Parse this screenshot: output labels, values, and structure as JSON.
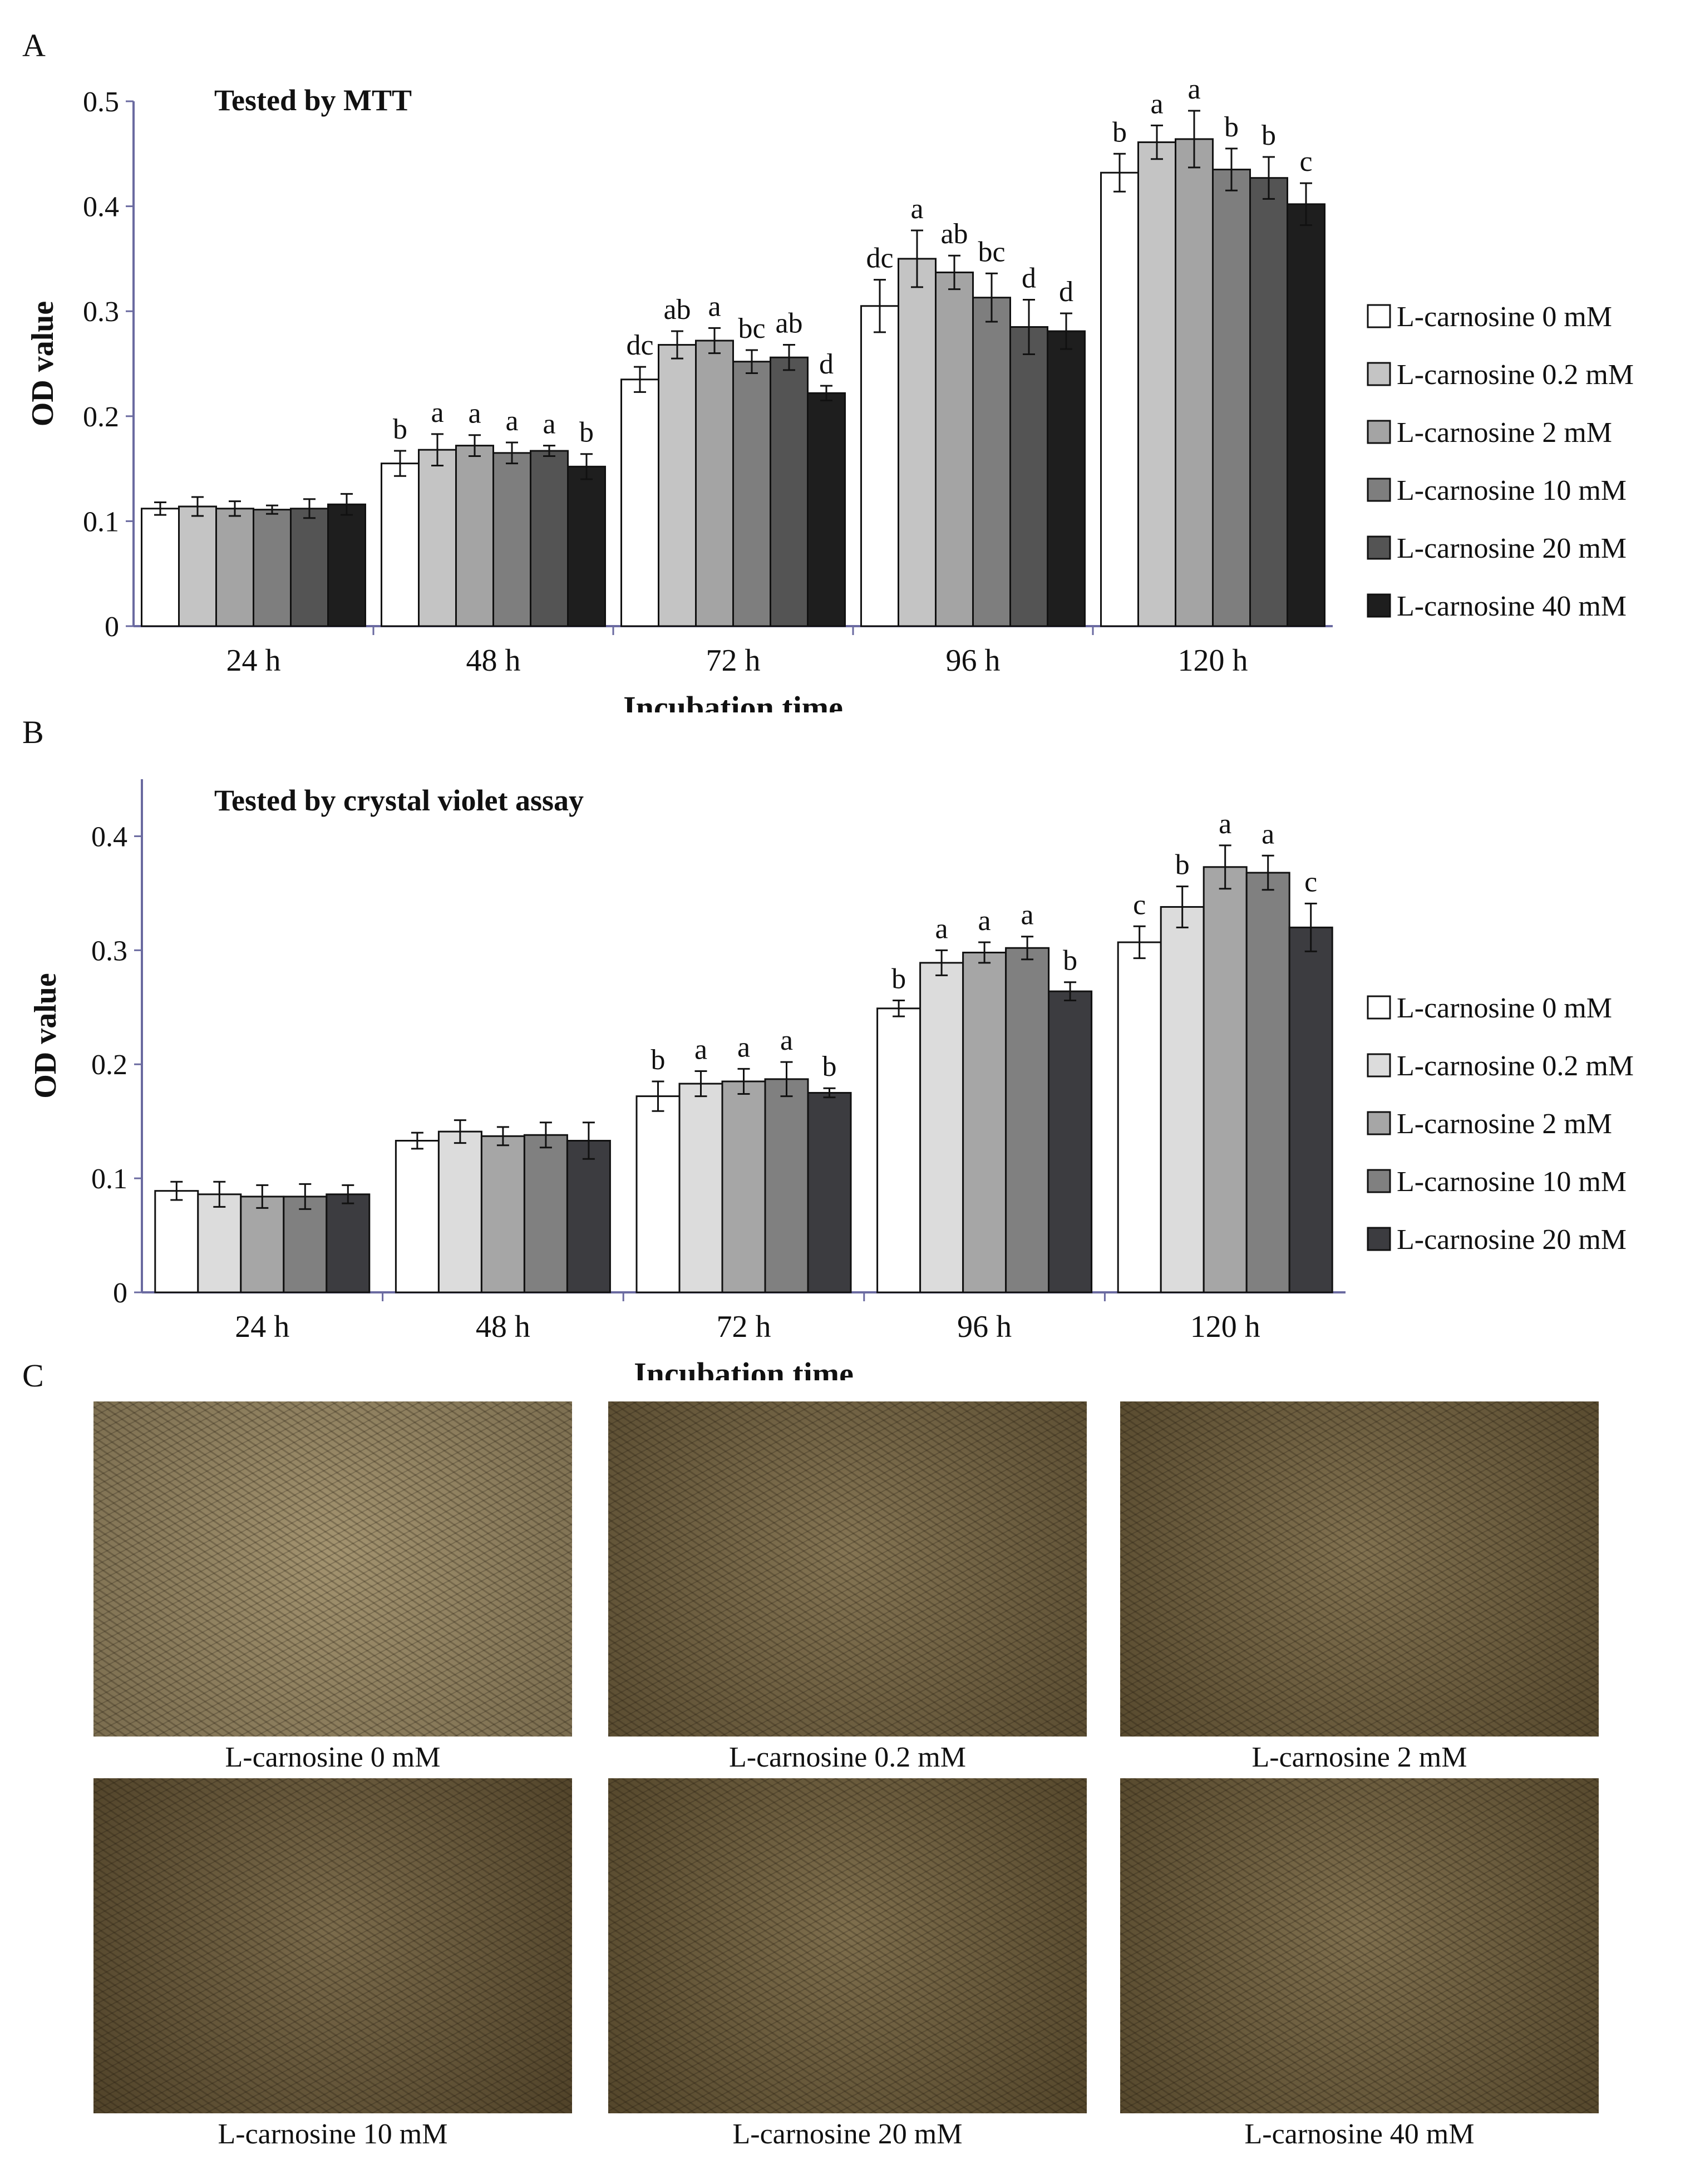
{
  "panels": {
    "a": {
      "letter": "A"
    },
    "b": {
      "letter": "B"
    },
    "c": {
      "letter": "C"
    }
  },
  "chart_data": [
    {
      "type": "bar",
      "title": "Tested by MTT",
      "xlabel": "Incubation time",
      "ylabel": "OD value",
      "ylim": [
        0,
        0.5
      ],
      "yticks": [
        "0",
        "0.1",
        "0.2",
        "0.3",
        "0.4",
        "0.5"
      ],
      "legend_position": "right",
      "categories": [
        "24 h",
        "48 h",
        "72 h",
        "96 h",
        "120 h"
      ],
      "series": [
        {
          "name": "L-carnosine 0 mM",
          "color": "#ffffff",
          "values": [
            0.112,
            0.155,
            0.235,
            0.305,
            0.432
          ],
          "errors": [
            0.006,
            0.012,
            0.012,
            0.025,
            0.018
          ],
          "letters": [
            "",
            "b",
            "dc",
            "dc",
            "b"
          ]
        },
        {
          "name": "L-carnosine 0.2 mM",
          "color": "#c4c4c4",
          "values": [
            0.114,
            0.168,
            0.268,
            0.35,
            0.461
          ],
          "errors": [
            0.009,
            0.015,
            0.013,
            0.027,
            0.016
          ],
          "letters": [
            "",
            "a",
            "ab",
            "a",
            "a"
          ]
        },
        {
          "name": "L-carnosine 2 mM",
          "color": "#a4a4a4",
          "values": [
            0.112,
            0.172,
            0.272,
            0.337,
            0.464
          ],
          "errors": [
            0.007,
            0.01,
            0.012,
            0.016,
            0.027
          ],
          "letters": [
            "",
            "a",
            "a",
            "ab",
            "a"
          ]
        },
        {
          "name": "L-carnosine 10 mM",
          "color": "#7e7e7e",
          "values": [
            0.111,
            0.165,
            0.252,
            0.313,
            0.435
          ],
          "errors": [
            0.004,
            0.01,
            0.011,
            0.023,
            0.02
          ],
          "letters": [
            "",
            "a",
            "bc",
            "bc",
            "b"
          ]
        },
        {
          "name": "L-carnosine 20 mM",
          "color": "#545454",
          "values": [
            0.112,
            0.167,
            0.256,
            0.285,
            0.427
          ],
          "errors": [
            0.009,
            0.005,
            0.012,
            0.026,
            0.02
          ],
          "letters": [
            "",
            "a",
            "ab",
            "d",
            "b"
          ]
        },
        {
          "name": "L-carnosine 40 mM",
          "color": "#1e1e1e",
          "values": [
            0.116,
            0.152,
            0.222,
            0.281,
            0.402
          ],
          "errors": [
            0.01,
            0.012,
            0.007,
            0.017,
            0.02
          ],
          "letters": [
            "",
            "b",
            "d",
            "d",
            "c"
          ]
        }
      ]
    },
    {
      "type": "bar",
      "title": "Tested by crystal violet assay",
      "xlabel": "Incubation time",
      "ylabel": "OD value",
      "ylim": [
        0,
        0.45
      ],
      "yticks": [
        "0",
        "0.1",
        "0.2",
        "0.3",
        "0.4"
      ],
      "legend_position": "right",
      "categories": [
        "24 h",
        "48 h",
        "72 h",
        "96 h",
        "120 h"
      ],
      "series": [
        {
          "name": "L-carnosine 0 mM",
          "color": "#ffffff",
          "values": [
            0.089,
            0.133,
            0.172,
            0.249,
            0.307
          ],
          "errors": [
            0.008,
            0.007,
            0.013,
            0.007,
            0.014
          ],
          "letters": [
            "",
            "",
            "b",
            "b",
            "c"
          ]
        },
        {
          "name": "L-carnosine 0.2 mM",
          "color": "#dcdcdc",
          "values": [
            0.086,
            0.141,
            0.183,
            0.289,
            0.338
          ],
          "errors": [
            0.011,
            0.01,
            0.011,
            0.011,
            0.018
          ],
          "letters": [
            "",
            "",
            "a",
            "a",
            "b"
          ]
        },
        {
          "name": "L-carnosine 2 mM",
          "color": "#a6a6a6",
          "values": [
            0.084,
            0.137,
            0.185,
            0.298,
            0.373
          ],
          "errors": [
            0.01,
            0.008,
            0.011,
            0.009,
            0.019
          ],
          "letters": [
            "",
            "",
            "a",
            "a",
            "a"
          ]
        },
        {
          "name": "L-carnosine 10 mM",
          "color": "#808080",
          "values": [
            0.084,
            0.138,
            0.187,
            0.302,
            0.368
          ],
          "errors": [
            0.011,
            0.011,
            0.015,
            0.01,
            0.015
          ],
          "letters": [
            "",
            "",
            "a",
            "a",
            "a"
          ]
        },
        {
          "name": "L-carnosine 20 mM",
          "color": "#3c3c40",
          "values": [
            0.086,
            0.133,
            0.175,
            0.264,
            0.32
          ],
          "errors": [
            0.008,
            0.016,
            0.004,
            0.008,
            0.021
          ],
          "letters": [
            "",
            "",
            "b",
            "b",
            "c"
          ]
        }
      ]
    }
  ],
  "micrographs": [
    {
      "caption": "L-carnosine 0 mM",
      "tone": "#8f7f5c"
    },
    {
      "caption": "L-carnosine 0.2 mM",
      "tone": "#6a5a3a"
    },
    {
      "caption": "L-carnosine 2 mM",
      "tone": "#665636"
    },
    {
      "caption": "L-carnosine 10 mM",
      "tone": "#5e4e30"
    },
    {
      "caption": "L-carnosine 20 mM",
      "tone": "#625232"
    },
    {
      "caption": "L-carnosine  40 mM",
      "tone": "#645434"
    }
  ]
}
